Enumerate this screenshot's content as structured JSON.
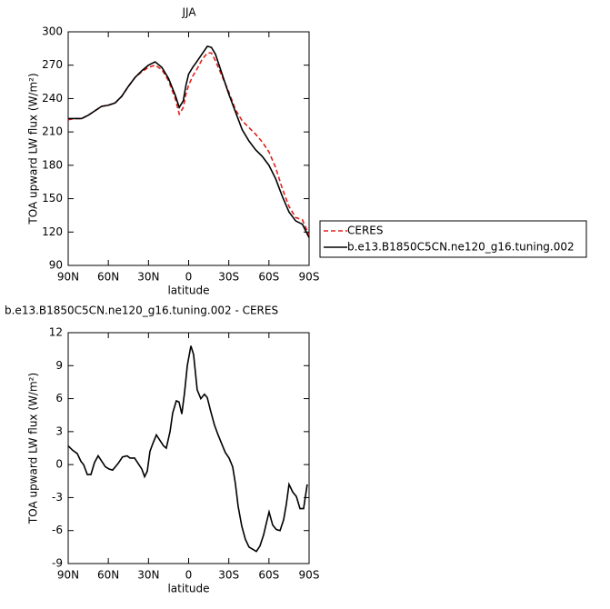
{
  "chart_data": [
    {
      "type": "line",
      "title": "JJA",
      "xlabel": "latitude",
      "ylabel": "TOA upward LW flux (W/m²)",
      "x": [
        90,
        85,
        80,
        75,
        70,
        65,
        60,
        55,
        50,
        45,
        40,
        35,
        30,
        25,
        20,
        15,
        10,
        7,
        4,
        2,
        0,
        -3,
        -6,
        -10,
        -14,
        -17,
        -20,
        -25,
        -30,
        -35,
        -40,
        -45,
        -50,
        -55,
        -60,
        -65,
        -70,
        -75,
        -80,
        -85,
        -90
      ],
      "series": [
        {
          "name": "CERES",
          "color": "#e0201b",
          "linestyle": "dashed",
          "values": [
            221,
            222,
            222,
            225,
            229,
            233,
            234,
            236,
            242,
            251,
            259,
            264,
            268,
            270,
            266,
            256,
            240,
            226,
            232,
            244,
            252,
            260,
            266,
            275,
            281,
            281,
            274,
            260,
            246,
            230,
            220,
            214,
            208,
            201,
            192,
            178,
            159,
            143,
            133,
            131,
            117
          ]
        },
        {
          "name": "b.e13.B1850C5CN.ne120_g16.tuning.002",
          "color": "#000000",
          "linestyle": "solid",
          "values": [
            222,
            222,
            222,
            225,
            229,
            233,
            234,
            236,
            242,
            251,
            259,
            265,
            270,
            273,
            268,
            258,
            243,
            232,
            238,
            252,
            262,
            268,
            273,
            280,
            287,
            286,
            280,
            262,
            244,
            228,
            212,
            202,
            194,
            188,
            180,
            168,
            152,
            138,
            130,
            127,
            115
          ]
        }
      ],
      "xlim": [
        90,
        -90
      ],
      "xticks": [
        {
          "value": 90,
          "label": "90N"
        },
        {
          "value": 60,
          "label": "60N"
        },
        {
          "value": 30,
          "label": "30N"
        },
        0,
        {
          "value": -30,
          "label": "30S"
        },
        {
          "value": -60,
          "label": "60S"
        },
        {
          "value": -90,
          "label": "90S"
        }
      ],
      "ylim": [
        90,
        300
      ],
      "yticks": [
        90,
        120,
        150,
        180,
        210,
        240,
        270,
        300
      ],
      "legend": "outside right"
    },
    {
      "type": "line",
      "title": "b.e13.B1850C5CN.ne120_g16.tuning.002 - CERES",
      "xlabel": "latitude",
      "ylabel": "TOA upward LW flux (W/m²)",
      "x": [
        90,
        86.6,
        83.2,
        80.5,
        78.5,
        75.7,
        73.0,
        70.3,
        67.6,
        64.9,
        62.2,
        59.5,
        56.8,
        52.7,
        49.4,
        46.0,
        43.8,
        40.4,
        37.7,
        35.0,
        32.9,
        30.9,
        28.9,
        26.8,
        24.1,
        21.4,
        18.7,
        16.7,
        13.9,
        11.9,
        9.2,
        7.2,
        5.1,
        3.1,
        1.0,
        -1.7,
        -3.7,
        -6.4,
        -9.1,
        -11.8,
        -13.9,
        -16.6,
        -19.3,
        -22.0,
        -24.7,
        -27.4,
        -30.2,
        -32.9,
        -34.9,
        -37.0,
        -39.7,
        -42.4,
        -45.1,
        -47.9,
        -50.6,
        -53.3,
        -56.0,
        -58.1,
        -60.1,
        -62.8,
        -65.5,
        -68.3,
        -71.0,
        -73.0,
        -75.0,
        -77.8,
        -80.5,
        -83.2,
        -85.9,
        -88.6
      ],
      "series": [
        {
          "color": "#000000",
          "linestyle": "solid",
          "values": [
            1.7,
            1.3,
            1.0,
            0.3,
            0,
            -0.9,
            -0.9,
            0.2,
            0.8,
            0.3,
            -0.2,
            -0.4,
            -0.5,
            0.1,
            0.7,
            0.8,
            0.6,
            0.6,
            0.1,
            -0.4,
            -1.1,
            -0.6,
            1.2,
            1.9,
            2.7,
            2.2,
            1.7,
            1.5,
            3.0,
            4.7,
            5.8,
            5.7,
            4.6,
            6.5,
            9.0,
            10.8,
            10.0,
            6.8,
            6.0,
            6.4,
            6.1,
            4.8,
            3.6,
            2.7,
            1.9,
            1.1,
            0.6,
            -0.2,
            -1.7,
            -3.8,
            -5.6,
            -6.8,
            -7.5,
            -7.7,
            -7.9,
            -7.4,
            -6.4,
            -5.3,
            -4.3,
            -5.5,
            -5.9,
            -6.0,
            -5.0,
            -3.6,
            -1.8,
            -2.5,
            -2.9,
            -4.0,
            -4.0,
            -1.8
          ]
        }
      ],
      "xlim": [
        90,
        -90
      ],
      "xticks": [
        {
          "value": 90,
          "label": "90N"
        },
        {
          "value": 60,
          "label": "60N"
        },
        {
          "value": 30,
          "label": "30N"
        },
        0,
        {
          "value": -30,
          "label": "30S"
        },
        {
          "value": -60,
          "label": "60S"
        },
        {
          "value": -90,
          "label": "90S"
        }
      ],
      "ylim": [
        -9,
        12
      ],
      "yticks": [
        -9,
        -6,
        -3,
        0,
        3,
        6,
        9,
        12
      ]
    }
  ]
}
